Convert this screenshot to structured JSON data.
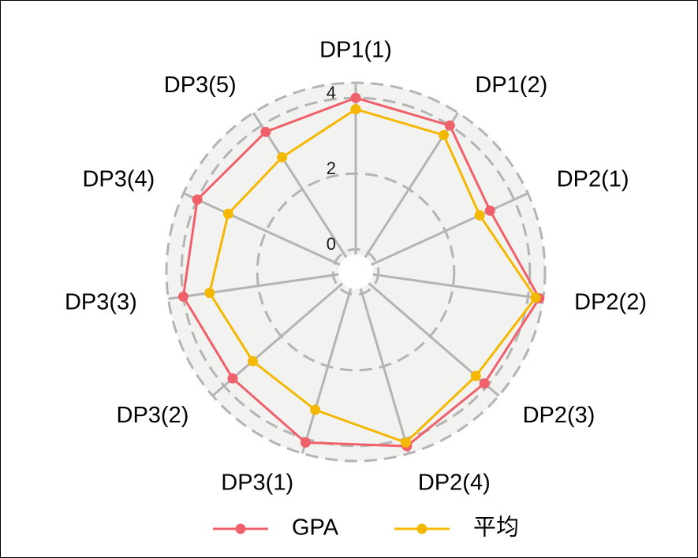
{
  "chart_data": {
    "type": "radar",
    "categories": [
      "DP1(1)",
      "DP1(2)",
      "DP2(1)",
      "DP2(2)",
      "DP2(3)",
      "DP2(4)",
      "DP3(1)",
      "DP3(2)",
      "DP3(3)",
      "DP3(4)",
      "DP3(5)"
    ],
    "series": [
      {
        "name": "GPA",
        "color": "#f0606a",
        "values": [
          4.0,
          4.0,
          3.3,
          4.3,
          3.9,
          4.2,
          4.1,
          3.7,
          4.0,
          4.0,
          3.8
        ]
      },
      {
        "name": "平均",
        "color": "#f5b800",
        "values": [
          3.7,
          3.7,
          3.0,
          4.2,
          3.6,
          4.1,
          3.2,
          3.0,
          3.3,
          3.1,
          3.0
        ]
      }
    ],
    "radial_ticks": [
      "0",
      "2",
      "4"
    ],
    "r_range": [
      -0.6,
      4.4
    ],
    "grid": true,
    "legend_position": "bottom"
  }
}
